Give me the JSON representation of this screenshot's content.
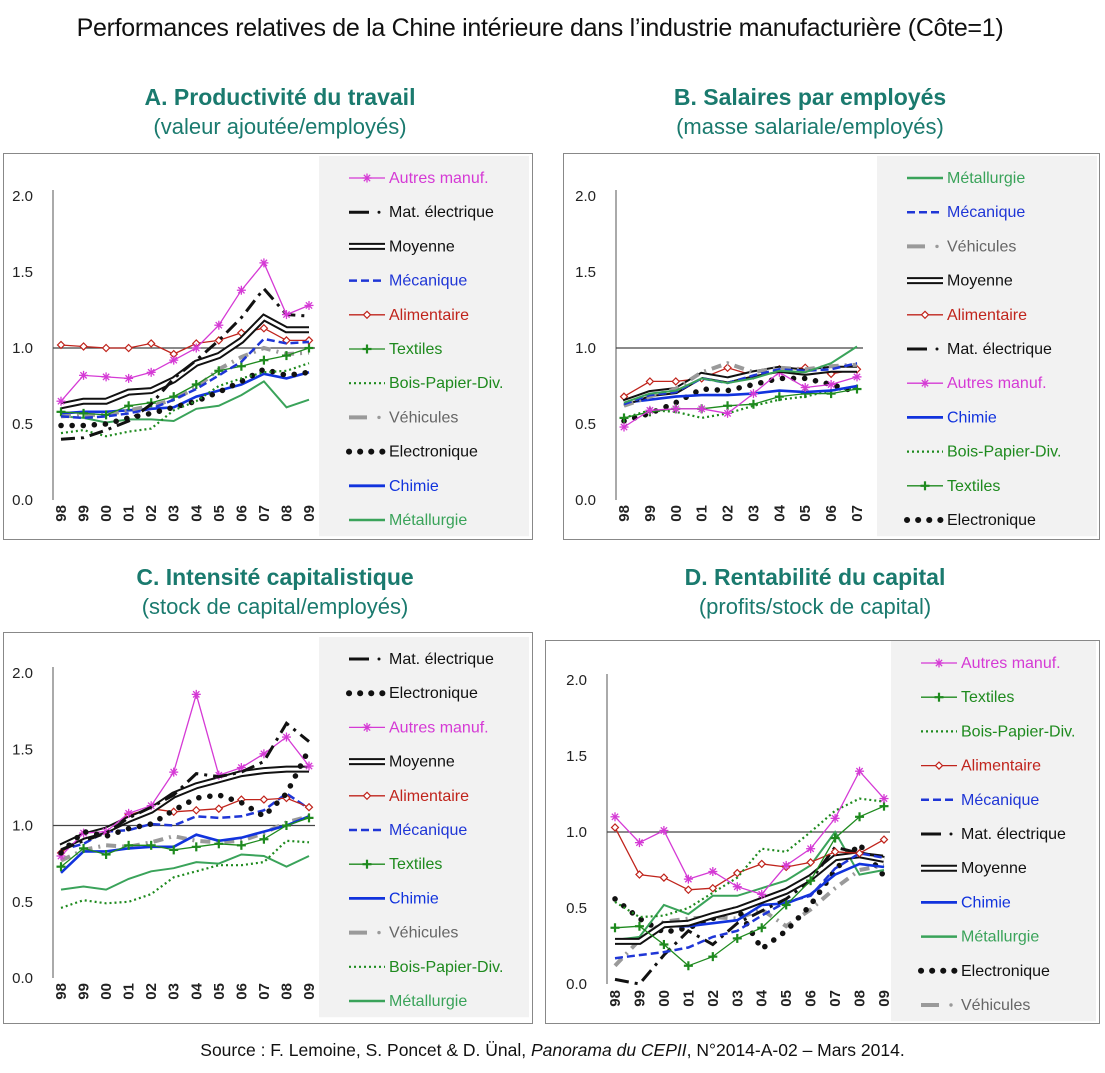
{
  "main_title": "Performances relatives de la Chine intérieure dans l’industrie manufacturière (Côte=1)",
  "source": {
    "prefix": "Source : F. Lemoine, S. Poncet & D. Ünal, ",
    "italic": "Panorama du CEPII",
    "suffix": ", N°2014-A-02 – Mars 2014."
  },
  "series_styles": {
    "Autres manuf.": {
      "color": "#d53ad5",
      "style": "star"
    },
    "Mat. électrique": {
      "color": "#111111",
      "style": "dashdot"
    },
    "Moyenne": {
      "color": "#111111",
      "style": "double"
    },
    "Mécanique": {
      "color": "#1f36d6",
      "style": "dash"
    },
    "Alimentaire": {
      "color": "#c0241c",
      "style": "diamond"
    },
    "Textiles": {
      "color": "#1e8a1e",
      "style": "plus"
    },
    "Bois-Papier-Div.": {
      "color": "#1e8a1e",
      "style": "dot"
    },
    "Véhicules": {
      "color": "#9a9a9a",
      "style": "grayDash"
    },
    "Electronique": {
      "color": "#111111",
      "style": "bigdot"
    },
    "Chimie": {
      "color": "#1133dd",
      "style": "solid"
    },
    "Métallurgie": {
      "color": "#3aa35a",
      "style": "double-green"
    }
  },
  "chart_data": [
    {
      "type": "line",
      "id": "A",
      "title": "A. Productivité du travail",
      "subtitle": "(valeur ajoutée/employés)",
      "x": [
        "98",
        "99",
        "00",
        "01",
        "02",
        "03",
        "04",
        "05",
        "06",
        "07",
        "08",
        "09"
      ],
      "ylim": [
        0,
        2.0
      ],
      "yticks": [
        "0.0",
        "0.5",
        "1.0",
        "1.5",
        "2.0"
      ],
      "reference_line": 1.0,
      "legend_position": "right",
      "series": [
        {
          "name": "Autres manuf.",
          "values": [
            0.65,
            0.82,
            0.81,
            0.8,
            0.84,
            0.92,
            1.0,
            1.15,
            1.38,
            1.56,
            1.22,
            1.28
          ]
        },
        {
          "name": "Mat. électrique",
          "values": [
            0.4,
            0.41,
            0.46,
            0.52,
            0.63,
            0.8,
            0.92,
            1.05,
            1.2,
            1.39,
            1.22,
            1.21
          ]
        },
        {
          "name": "Moyenne",
          "values": [
            0.62,
            0.65,
            0.65,
            0.71,
            0.72,
            0.79,
            0.9,
            0.95,
            1.05,
            1.2,
            1.12,
            1.12
          ]
        },
        {
          "name": "Mécanique",
          "values": [
            0.55,
            0.54,
            0.55,
            0.57,
            0.6,
            0.66,
            0.73,
            0.82,
            0.91,
            1.06,
            1.03,
            1.04
          ]
        },
        {
          "name": "Alimentaire",
          "values": [
            1.02,
            1.01,
            1.0,
            1.0,
            1.03,
            0.96,
            1.03,
            1.05,
            1.1,
            1.13,
            1.05,
            1.05
          ]
        },
        {
          "name": "Textiles",
          "values": [
            0.58,
            0.57,
            0.56,
            0.62,
            0.64,
            0.68,
            0.76,
            0.85,
            0.88,
            0.92,
            0.95,
            1.0
          ]
        },
        {
          "name": "Bois-Papier-Div.",
          "values": [
            0.44,
            0.46,
            0.42,
            0.45,
            0.47,
            0.59,
            0.65,
            0.75,
            0.8,
            0.84,
            0.85,
            0.9
          ]
        },
        {
          "name": "Véhicules",
          "values": [
            0.55,
            0.56,
            0.56,
            0.59,
            0.62,
            0.66,
            0.74,
            0.86,
            0.94,
            1.0,
            0.96,
            0.97
          ]
        },
        {
          "name": "Electronique",
          "values": [
            0.49,
            0.49,
            0.5,
            0.54,
            0.57,
            0.61,
            0.65,
            0.71,
            0.78,
            0.86,
            0.82,
            0.84
          ]
        },
        {
          "name": "Chimie",
          "values": [
            0.57,
            0.58,
            0.58,
            0.59,
            0.6,
            0.61,
            0.68,
            0.72,
            0.76,
            0.83,
            0.8,
            0.84
          ]
        },
        {
          "name": "Métallurgie",
          "values": [
            0.55,
            0.54,
            0.51,
            0.53,
            0.53,
            0.52,
            0.6,
            0.62,
            0.69,
            0.78,
            0.61,
            0.66
          ]
        }
      ]
    },
    {
      "type": "line",
      "id": "B",
      "title": "B.  Salaires par employés",
      "subtitle": "(masse salariale/employés)",
      "x": [
        "98",
        "99",
        "00",
        "01",
        "02",
        "03",
        "04",
        "05",
        "06",
        "07"
      ],
      "ylim": [
        0,
        2.0
      ],
      "yticks": [
        "0.0",
        "0.5",
        "1.0",
        "1.5",
        "2.0"
      ],
      "reference_line": 1.0,
      "legend_position": "right",
      "series": [
        {
          "name": "Métallurgie",
          "values": [
            0.64,
            0.7,
            0.72,
            0.8,
            0.77,
            0.8,
            0.85,
            0.84,
            0.9,
            1.01
          ]
        },
        {
          "name": "Mécanique",
          "values": [
            0.63,
            0.69,
            0.71,
            0.8,
            0.77,
            0.82,
            0.86,
            0.85,
            0.86,
            0.9
          ]
        },
        {
          "name": "Véhicules",
          "values": [
            0.62,
            0.68,
            0.73,
            0.84,
            0.9,
            0.84,
            0.87,
            0.86,
            0.88,
            0.89
          ]
        },
        {
          "name": "Moyenne",
          "values": [
            0.64,
            0.7,
            0.72,
            0.82,
            0.79,
            0.83,
            0.86,
            0.84,
            0.86,
            0.86
          ]
        },
        {
          "name": "Alimentaire",
          "values": [
            0.68,
            0.78,
            0.78,
            0.8,
            0.87,
            0.82,
            0.86,
            0.87,
            0.83,
            0.86
          ]
        },
        {
          "name": "Mat. électrique",
          "values": [
            0.62,
            0.7,
            0.72,
            0.82,
            0.78,
            0.82,
            0.86,
            0.84,
            0.86,
            0.88
          ]
        },
        {
          "name": "Autres manuf.",
          "values": [
            0.48,
            0.59,
            0.6,
            0.6,
            0.57,
            0.7,
            0.84,
            0.74,
            0.76,
            0.81
          ]
        },
        {
          "name": "Chimie",
          "values": [
            0.64,
            0.66,
            0.68,
            0.69,
            0.69,
            0.7,
            0.72,
            0.71,
            0.72,
            0.75
          ]
        },
        {
          "name": "Bois-Papier-Div.",
          "values": [
            0.54,
            0.59,
            0.58,
            0.54,
            0.57,
            0.62,
            0.66,
            0.68,
            0.72,
            0.74
          ]
        },
        {
          "name": "Textiles",
          "values": [
            0.54,
            0.58,
            0.6,
            0.6,
            0.62,
            0.63,
            0.68,
            0.7,
            0.7,
            0.73
          ]
        },
        {
          "name": "Electronique",
          "values": [
            0.52,
            0.57,
            0.64,
            0.73,
            0.72,
            0.76,
            0.8,
            0.8,
            0.76,
            0.71
          ]
        }
      ]
    },
    {
      "type": "line",
      "id": "C",
      "title": "C. Intensité capitalistique",
      "subtitle": "(stock de capital/employés)",
      "x": [
        "98",
        "99",
        "00",
        "01",
        "02",
        "03",
        "04",
        "05",
        "06",
        "07",
        "08",
        "09"
      ],
      "ylim": [
        0,
        2.0
      ],
      "yticks": [
        "0.0",
        "0.5",
        "1.0",
        "1.5",
        "2.0"
      ],
      "reference_line": 1.0,
      "legend_position": "right",
      "series": [
        {
          "name": "Mat. électrique",
          "values": [
            0.84,
            0.9,
            0.95,
            1.05,
            1.12,
            1.2,
            1.34,
            1.32,
            1.35,
            1.42,
            1.67,
            1.55
          ]
        },
        {
          "name": "Electronique",
          "values": [
            0.82,
            0.96,
            0.93,
            0.98,
            1.01,
            1.1,
            1.18,
            1.2,
            1.15,
            1.06,
            1.21,
            1.5
          ]
        },
        {
          "name": "Autres manuf.",
          "values": [
            0.8,
            0.95,
            0.96,
            1.08,
            1.13,
            1.35,
            1.86,
            1.33,
            1.38,
            1.47,
            1.58,
            1.39
          ]
        },
        {
          "name": "Moyenne",
          "values": [
            0.86,
            0.93,
            0.97,
            1.04,
            1.1,
            1.2,
            1.26,
            1.3,
            1.34,
            1.36,
            1.37,
            1.37
          ]
        },
        {
          "name": "Alimentaire",
          "values": [
            0.82,
            0.94,
            0.96,
            1.07,
            1.11,
            1.09,
            1.1,
            1.11,
            1.17,
            1.17,
            1.18,
            1.12
          ]
        },
        {
          "name": "Mécanique",
          "values": [
            0.84,
            0.88,
            0.96,
            0.97,
            1.01,
            1.0,
            1.06,
            1.05,
            1.06,
            1.1,
            1.21,
            1.11
          ]
        },
        {
          "name": "Textiles",
          "values": [
            0.73,
            0.85,
            0.81,
            0.87,
            0.87,
            0.84,
            0.86,
            0.88,
            0.87,
            0.91,
            1.0,
            1.05
          ]
        },
        {
          "name": "Chimie",
          "values": [
            0.69,
            0.83,
            0.83,
            0.85,
            0.86,
            0.86,
            0.94,
            0.9,
            0.92,
            0.96,
            1.0,
            1.06
          ]
        },
        {
          "name": "Véhicules",
          "values": [
            0.77,
            0.84,
            0.87,
            0.86,
            0.89,
            0.93,
            0.9,
            0.89,
            0.9,
            0.95,
            1.02,
            1.06
          ]
        },
        {
          "name": "Bois-Papier-Div.",
          "values": [
            0.46,
            0.51,
            0.49,
            0.5,
            0.55,
            0.66,
            0.7,
            0.74,
            0.74,
            0.76,
            0.9,
            0.89
          ]
        },
        {
          "name": "Métallurgie",
          "values": [
            0.58,
            0.6,
            0.58,
            0.65,
            0.7,
            0.72,
            0.76,
            0.75,
            0.81,
            0.8,
            0.73,
            0.8
          ]
        }
      ]
    },
    {
      "type": "line",
      "id": "D",
      "title": "D.  Rentabilité du capital",
      "subtitle": "(profits/stock de capital)",
      "x": [
        "98",
        "99",
        "00",
        "01",
        "02",
        "03",
        "04",
        "05",
        "06",
        "07",
        "08",
        "09"
      ],
      "ylim": [
        0,
        2.0
      ],
      "yticks": [
        "0.0",
        "0.5",
        "1.0",
        "1.5",
        "2.0"
      ],
      "reference_line": 1.0,
      "legend_position": "right",
      "series": [
        {
          "name": "Autres manuf.",
          "values": [
            1.1,
            0.93,
            1.01,
            0.69,
            0.74,
            0.64,
            0.59,
            0.78,
            0.89,
            1.09,
            1.4,
            1.22
          ]
        },
        {
          "name": "Textiles",
          "values": [
            0.37,
            0.38,
            0.26,
            0.12,
            0.18,
            0.3,
            0.37,
            0.52,
            0.68,
            0.96,
            1.1,
            1.17
          ]
        },
        {
          "name": "Bois-Papier-Div.",
          "values": [
            0.54,
            0.44,
            0.45,
            0.5,
            0.6,
            0.7,
            0.89,
            0.87,
            1.0,
            1.14,
            1.22,
            1.2
          ]
        },
        {
          "name": "Alimentaire",
          "values": [
            1.03,
            0.72,
            0.7,
            0.62,
            0.63,
            0.73,
            0.79,
            0.77,
            0.8,
            0.87,
            0.86,
            0.95
          ]
        },
        {
          "name": "Mécanique",
          "values": [
            0.17,
            0.19,
            0.21,
            0.24,
            0.31,
            0.35,
            0.45,
            0.54,
            0.58,
            0.76,
            0.86,
            0.83
          ]
        },
        {
          "name": "Mat. électrique",
          "values": [
            0.03,
            0.0,
            0.19,
            0.35,
            0.26,
            0.4,
            0.48,
            0.56,
            0.68,
            0.9,
            0.86,
            0.84
          ]
        },
        {
          "name": "Moyenne",
          "values": [
            0.28,
            0.28,
            0.39,
            0.4,
            0.45,
            0.49,
            0.55,
            0.61,
            0.7,
            0.83,
            0.85,
            0.82
          ]
        },
        {
          "name": "Chimie",
          "values": [
            0.28,
            0.28,
            0.38,
            0.38,
            0.4,
            0.42,
            0.52,
            0.53,
            0.59,
            0.72,
            0.79,
            0.77
          ]
        },
        {
          "name": "Métallurgie",
          "values": [
            0.29,
            0.31,
            0.52,
            0.46,
            0.58,
            0.58,
            0.63,
            0.68,
            0.78,
            1.0,
            0.72,
            0.75
          ]
        },
        {
          "name": "Electronique",
          "values": [
            0.56,
            0.43,
            0.34,
            0.37,
            0.43,
            0.5,
            0.23,
            0.35,
            0.52,
            0.75,
            0.92,
            0.71
          ]
        },
        {
          "name": "Véhicules",
          "values": [
            0.12,
            0.29,
            0.41,
            0.43,
            0.44,
            0.43,
            0.49,
            0.38,
            0.49,
            0.63,
            0.75,
            0.78
          ]
        }
      ]
    }
  ]
}
